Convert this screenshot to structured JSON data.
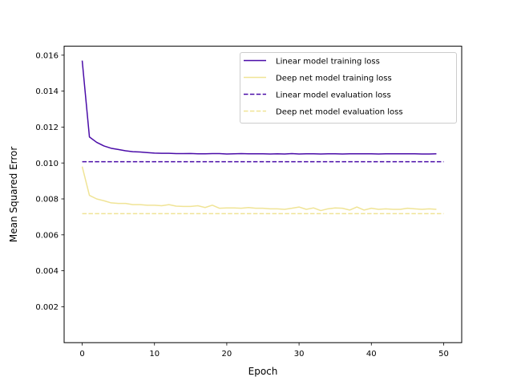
{
  "chart_data": {
    "type": "line",
    "title": "",
    "xlabel": "Epoch",
    "ylabel": "Mean Squared Error",
    "xlim": [
      -2.5,
      52.5
    ],
    "ylim": [
      0.0,
      0.0165
    ],
    "xticks": [
      0,
      10,
      20,
      30,
      40,
      50
    ],
    "xtick_labels": [
      "0",
      "10",
      "20",
      "30",
      "40",
      "50"
    ],
    "yticks": [
      0.002,
      0.004,
      0.006,
      0.008,
      0.01,
      0.012,
      0.014,
      0.016
    ],
    "ytick_labels": [
      "0.002",
      "0.004",
      "0.006",
      "0.008",
      "0.010",
      "0.012",
      "0.014",
      "0.016"
    ],
    "grid": false,
    "legend_position": "top-right",
    "series": [
      {
        "name": "Linear model training loss",
        "color": "#4a0ca8",
        "style": "solid",
        "x": [
          0,
          1,
          2,
          3,
          4,
          5,
          6,
          7,
          8,
          9,
          10,
          11,
          12,
          13,
          14,
          15,
          16,
          17,
          18,
          19,
          20,
          21,
          22,
          23,
          24,
          25,
          26,
          27,
          28,
          29,
          30,
          31,
          32,
          33,
          34,
          35,
          36,
          37,
          38,
          39,
          40,
          41,
          42,
          43,
          44,
          45,
          46,
          47,
          48,
          49
        ],
        "y": [
          0.0157,
          0.01145,
          0.01115,
          0.01095,
          0.01082,
          0.01075,
          0.01068,
          0.01063,
          0.01061,
          0.01058,
          0.01055,
          0.01054,
          0.01054,
          0.01052,
          0.01052,
          0.01053,
          0.01051,
          0.01051,
          0.01052,
          0.01052,
          0.0105,
          0.01051,
          0.01052,
          0.01051,
          0.01051,
          0.01051,
          0.0105,
          0.01051,
          0.0105,
          0.01052,
          0.0105,
          0.01051,
          0.01051,
          0.0105,
          0.01051,
          0.01051,
          0.0105,
          0.01051,
          0.01051,
          0.01051,
          0.01051,
          0.0105,
          0.01051,
          0.01051,
          0.01051,
          0.01051,
          0.01051,
          0.0105,
          0.0105,
          0.01051
        ]
      },
      {
        "name": "Deep net model training loss",
        "color": "#f0e496",
        "style": "solid",
        "x": [
          0,
          1,
          2,
          3,
          4,
          5,
          6,
          7,
          8,
          9,
          10,
          11,
          12,
          13,
          14,
          15,
          16,
          17,
          18,
          19,
          20,
          21,
          22,
          23,
          24,
          25,
          26,
          27,
          28,
          29,
          30,
          31,
          32,
          33,
          34,
          35,
          36,
          37,
          38,
          39,
          40,
          41,
          42,
          43,
          44,
          45,
          46,
          47,
          48,
          49
        ],
        "y": [
          0.0098,
          0.0082,
          0.008,
          0.0079,
          0.00778,
          0.00775,
          0.00775,
          0.00768,
          0.00768,
          0.00765,
          0.00765,
          0.00762,
          0.00768,
          0.0076,
          0.00758,
          0.00758,
          0.00762,
          0.00752,
          0.00765,
          0.00748,
          0.0075,
          0.0075,
          0.00748,
          0.00752,
          0.00748,
          0.00748,
          0.00745,
          0.00745,
          0.00742,
          0.00748,
          0.00755,
          0.00742,
          0.0075,
          0.00735,
          0.00745,
          0.0075,
          0.00748,
          0.00738,
          0.00755,
          0.00738,
          0.00748,
          0.00742,
          0.00745,
          0.00742,
          0.00742,
          0.00748,
          0.00745,
          0.00742,
          0.00745,
          0.00742
        ]
      },
      {
        "name": "Linear model evaluation loss",
        "color": "#4a0ca8",
        "style": "dashed",
        "x": [
          0,
          50
        ],
        "y": [
          0.01007,
          0.01007
        ]
      },
      {
        "name": "Deep net model evaluation loss",
        "color": "#f0e496",
        "style": "dashed",
        "x": [
          0,
          50
        ],
        "y": [
          0.00718,
          0.00718
        ]
      }
    ]
  }
}
